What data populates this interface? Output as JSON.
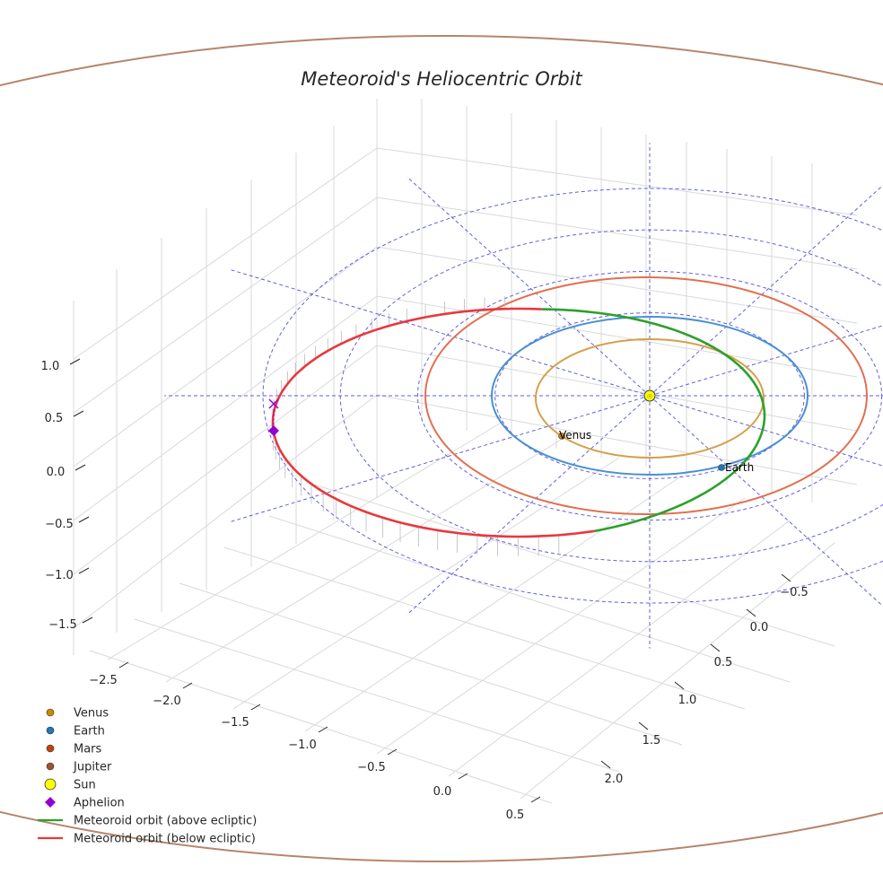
{
  "chart_data": {
    "type": "3d-orbit",
    "title": "Meteoroid's Heliocentric Orbit",
    "x_ticks": [
      "−2.5",
      "−2.0",
      "−1.5",
      "−1.0",
      "−0.5",
      "0.0",
      "0.5"
    ],
    "y_ticks": [
      "−0.5",
      "0.0",
      "0.5",
      "1.0",
      "1.5",
      "2.0"
    ],
    "z_ticks": [
      "1.0",
      "0.5",
      "0.0",
      "−0.5",
      "−1.0",
      "−1.5"
    ],
    "xlim": [
      -2.6,
      0.6
    ],
    "ylim": [
      -0.8,
      2.3
    ],
    "zlim": [
      -1.8,
      1.3
    ],
    "planets": [
      {
        "name": "Venus",
        "a_au": 0.72,
        "color": "#d4a04a",
        "marker": "#cc8800",
        "label": "Venus"
      },
      {
        "name": "Earth",
        "a_au": 1.0,
        "color": "#4a8fd4",
        "marker": "#1f77b4",
        "label": "Earth"
      },
      {
        "name": "Mars",
        "a_au": 1.52,
        "color": "#e07050",
        "marker": "#c1440e",
        "label": ""
      },
      {
        "name": "Jupiter",
        "a_au": 5.2,
        "color": "#b5866a",
        "marker": "#a0522d",
        "label": ""
      }
    ],
    "sun": {
      "name": "Sun",
      "color": "#ffff00"
    },
    "aphelion": {
      "name": "Aphelion",
      "color": "#9400d3",
      "au": [
        -2.06,
        0.0,
        0.3
      ]
    },
    "meteoroid": {
      "semi_major_axis_au": 1.55,
      "aphelion_distance_au": 2.06,
      "above_color": "#2ca02c",
      "below_color": "#e8383d"
    },
    "ecliptic_grid_radii_au": [
      1.0,
      1.5,
      2.0,
      2.5
    ],
    "grid_color": "#4444dd",
    "legend": [
      {
        "label": "Venus",
        "kind": "dot",
        "color": "#cc8800"
      },
      {
        "label": "Earth",
        "kind": "dot",
        "color": "#1f77b4"
      },
      {
        "label": "Mars",
        "kind": "dot",
        "color": "#c1440e"
      },
      {
        "label": "Jupiter",
        "kind": "dot",
        "color": "#a0522d"
      },
      {
        "label": "Sun",
        "kind": "bigdot",
        "color": "#ffff00"
      },
      {
        "label": "Aphelion",
        "kind": "diamond",
        "color": "#9400d3"
      },
      {
        "label": "Meteoroid orbit (above ecliptic)",
        "kind": "line",
        "color": "#2ca02c"
      },
      {
        "label": "Meteoroid orbit (below ecliptic)",
        "kind": "line",
        "color": "#e8383d"
      }
    ]
  }
}
